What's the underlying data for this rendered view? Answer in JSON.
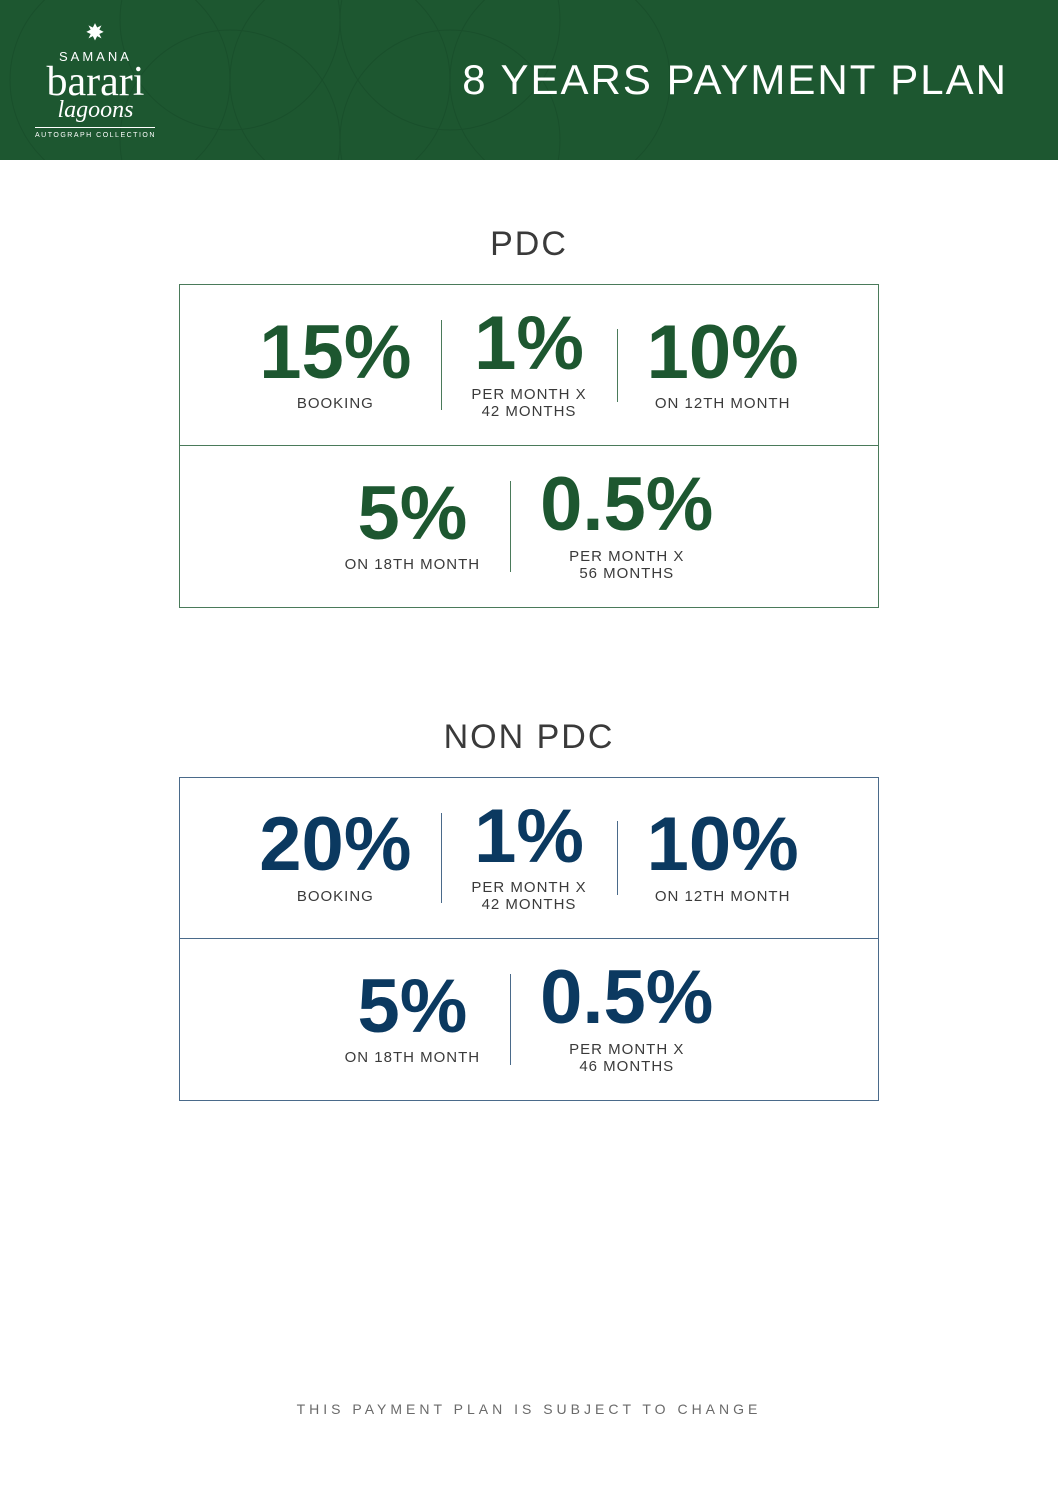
{
  "colors": {
    "header_bg": "#1d5730",
    "pdc_accent": "#1d5730",
    "nonpdc_accent": "#0b3960",
    "border": "#4a7a5a",
    "border_nonpdc": "#4a6a8a",
    "text_body": "#3a3a3a",
    "footer": "#6a6a6a",
    "white": "#ffffff"
  },
  "logo": {
    "top": "SAMANA",
    "main": "barari",
    "sub": "lagoons",
    "tag": "AUTOGRAPH COLLECTION"
  },
  "header": {
    "title": "8 YEARS PAYMENT PLAN"
  },
  "pdc": {
    "title": "PDC",
    "items": [
      {
        "value": "15%",
        "label": "BOOKING"
      },
      {
        "value": "1%",
        "label": "PER MONTH X\n42 MONTHS"
      },
      {
        "value": "10%",
        "label": "ON 12TH MONTH"
      },
      {
        "value": "5%",
        "label": "ON 18TH MONTH"
      },
      {
        "value": "0.5%",
        "label": "PER MONTH X\n56 MONTHS"
      }
    ]
  },
  "nonpdc": {
    "title": "NON PDC",
    "items": [
      {
        "value": "20%",
        "label": "BOOKING"
      },
      {
        "value": "1%",
        "label": "PER MONTH X\n42 MONTHS"
      },
      {
        "value": "10%",
        "label": "ON 12TH MONTH"
      },
      {
        "value": "5%",
        "label": "ON 18TH MONTH"
      },
      {
        "value": "0.5%",
        "label": "PER MONTH X\n46 MONTHS"
      }
    ]
  },
  "footer": {
    "note": "THIS PAYMENT PLAN IS SUBJECT TO CHANGE"
  }
}
